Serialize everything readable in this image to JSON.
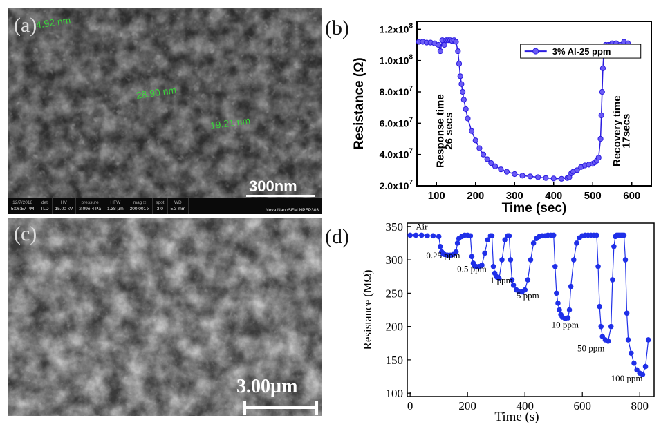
{
  "panels": {
    "a": {
      "label": "(a)",
      "measurements": [
        "4.92 nm",
        "28.90 nm",
        "19.21 nm"
      ],
      "scalebar": "300nm",
      "infobar": {
        "cells": [
          {
            "h": "12/7/2018",
            "v": "5:06:57 PM"
          },
          {
            "h": "det",
            "v": "TLD"
          },
          {
            "h": "HV",
            "v": "15.00 kV"
          },
          {
            "h": "pressure",
            "v": "2.09e-4 Pa"
          },
          {
            "h": "HFW",
            "v": "1.38 µm"
          },
          {
            "h": "mag □",
            "v": "300 001 x"
          },
          {
            "h": "spot",
            "v": "3.0"
          },
          {
            "h": "WD",
            "v": "5.3 mm"
          }
        ],
        "instrument": "Nova NanoSEM  NPEP303"
      }
    },
    "b": {
      "label": "(b)"
    },
    "c": {
      "label": "(c)",
      "scalebar": "3.00µm"
    },
    "d": {
      "label": "(d)"
    }
  },
  "chart_data": [
    {
      "panel": "b",
      "type": "line",
      "xlabel": "Time (sec)",
      "ylabel": "Resistance (Ω)",
      "xlim": [
        50,
        650
      ],
      "ylim": [
        20000000.0,
        125000000.0
      ],
      "xticks": [
        100,
        200,
        300,
        400,
        500,
        600
      ],
      "yticks": [
        {
          "v": 20000000.0,
          "m": "2.0x10",
          "e": "7"
        },
        {
          "v": 40000000.0,
          "m": "4.0x10",
          "e": "7"
        },
        {
          "v": 60000000.0,
          "m": "6.0x10",
          "e": "7"
        },
        {
          "v": 80000000.0,
          "m": "8.0x10",
          "e": "7"
        },
        {
          "v": 100000000.0,
          "m": "1.0x10",
          "e": "8"
        },
        {
          "v": 120000000.0,
          "m": "1.2x10",
          "e": "8"
        }
      ],
      "legend": "3% Al-25 ppm",
      "legend_position": "top-right",
      "color": "#2a1be0",
      "annotations": [
        {
          "text": "Response time",
          "x": 118,
          "y": 55000000.0
        },
        {
          "text": "26 secs",
          "x": 140,
          "y": 55000000.0
        },
        {
          "text": "Recovery time",
          "x": 570,
          "y": 55000000.0
        },
        {
          "text": "17secs",
          "x": 594,
          "y": 55000000.0
        }
      ],
      "series": [
        {
          "name": "3% Al-25 ppm",
          "x": [
            55,
            65,
            75,
            85,
            95,
            105,
            110,
            115,
            120,
            125,
            130,
            135,
            140,
            145,
            150,
            155,
            158,
            161,
            164,
            167,
            170,
            175,
            180,
            190,
            200,
            210,
            220,
            230,
            240,
            250,
            265,
            280,
            300,
            320,
            340,
            360,
            380,
            400,
            420,
            435,
            440,
            445,
            450,
            460,
            470,
            480,
            490,
            500,
            505,
            510,
            515,
            520,
            522,
            524,
            526,
            528,
            530,
            533,
            536,
            540,
            545,
            550,
            560,
            570,
            580,
            590
          ],
          "y": [
            112000000.0,
            112000000.0,
            111500000.0,
            111500000.0,
            111000000.0,
            110000000.0,
            106000000.0,
            113000000.0,
            110000000.0,
            113000000.0,
            113000000.0,
            113000000.0,
            112500000.0,
            113000000.0,
            112000000.0,
            106000000.0,
            98000000.0,
            90000000.0,
            85000000.0,
            80000000.0,
            75000000.0,
            69000000.0,
            63000000.0,
            55000000.0,
            49000000.0,
            44000000.0,
            40000000.0,
            37000000.0,
            34500000.0,
            32500000.0,
            30500000.0,
            29000000.0,
            27500000.0,
            26500000.0,
            26000000.0,
            25500000.0,
            25000000.0,
            24700000.0,
            24500000.0,
            25000000.0,
            25500000.0,
            28000000.0,
            29000000.0,
            30000000.0,
            32000000.0,
            33000000.0,
            33500000.0,
            34000000.0,
            35000000.0,
            36000000.0,
            38000000.0,
            50000000.0,
            65000000.0,
            80000000.0,
            95000000.0,
            104000000.0,
            108000000.0,
            110000000.0,
            108000000.0,
            110000000.0,
            110000000.0,
            111000000.0,
            111000000.0,
            110000000.0,
            112000000.0,
            111000000.0
          ]
        }
      ]
    },
    {
      "panel": "d",
      "type": "line",
      "xlabel": "Time (s)",
      "ylabel": "Resistance (MΩ)",
      "xlim": [
        -10,
        850
      ],
      "ylim": [
        95,
        355
      ],
      "xticks": [
        0,
        200,
        400,
        600,
        800
      ],
      "yticks": [
        100,
        150,
        200,
        250,
        300,
        350
      ],
      "color": "#1f2fe8",
      "annotations": [
        {
          "text": "Air",
          "x": 40,
          "y": 345
        },
        {
          "text": "0.25 ppm",
          "x": 115,
          "y": 302
        },
        {
          "text": "0.5 ppm",
          "x": 215,
          "y": 282
        },
        {
          "text": "1 ppm",
          "x": 318,
          "y": 265
        },
        {
          "text": "5 ppm",
          "x": 410,
          "y": 242
        },
        {
          "text": "10 ppm",
          "x": 540,
          "y": 198
        },
        {
          "text": "50 ppm",
          "x": 630,
          "y": 163
        },
        {
          "text": "100 ppm",
          "x": 755,
          "y": 118
        }
      ],
      "series": [
        {
          "name": "",
          "x": [
            0,
            20,
            40,
            60,
            80,
            100,
            105,
            110,
            115,
            120,
            130,
            140,
            150,
            160,
            165,
            170,
            180,
            190,
            200,
            210,
            215,
            220,
            225,
            230,
            240,
            250,
            260,
            270,
            280,
            285,
            290,
            295,
            300,
            305,
            310,
            320,
            330,
            340,
            345,
            350,
            355,
            360,
            370,
            380,
            390,
            400,
            410,
            420,
            430,
            440,
            450,
            460,
            470,
            480,
            490,
            500,
            505,
            510,
            515,
            520,
            525,
            530,
            540,
            550,
            555,
            560,
            570,
            580,
            590,
            600,
            610,
            620,
            630,
            640,
            650,
            655,
            660,
            665,
            670,
            680,
            690,
            700,
            705,
            710,
            715,
            720,
            725,
            730,
            735,
            740,
            745,
            750,
            755,
            760,
            770,
            780,
            790,
            800,
            810,
            820,
            830
          ],
          "y": [
            337,
            337,
            337,
            336,
            336,
            335,
            320,
            312,
            309,
            308,
            307,
            307,
            308,
            312,
            325,
            332,
            335,
            337,
            337,
            336,
            305,
            295,
            291,
            290,
            290,
            292,
            310,
            330,
            336,
            336,
            290,
            280,
            275,
            273,
            272,
            300,
            330,
            336,
            336,
            300,
            270,
            262,
            255,
            252,
            252,
            255,
            270,
            300,
            325,
            332,
            335,
            336,
            336,
            337,
            337,
            337,
            290,
            250,
            235,
            225,
            218,
            214,
            212,
            213,
            225,
            260,
            300,
            325,
            333,
            336,
            337,
            337,
            337,
            337,
            337,
            290,
            230,
            200,
            185,
            180,
            178,
            200,
            270,
            320,
            335,
            337,
            337,
            337,
            337,
            337,
            337,
            300,
            220,
            180,
            160,
            145,
            135,
            130,
            128,
            140,
            180
          ]
        }
      ]
    }
  ]
}
